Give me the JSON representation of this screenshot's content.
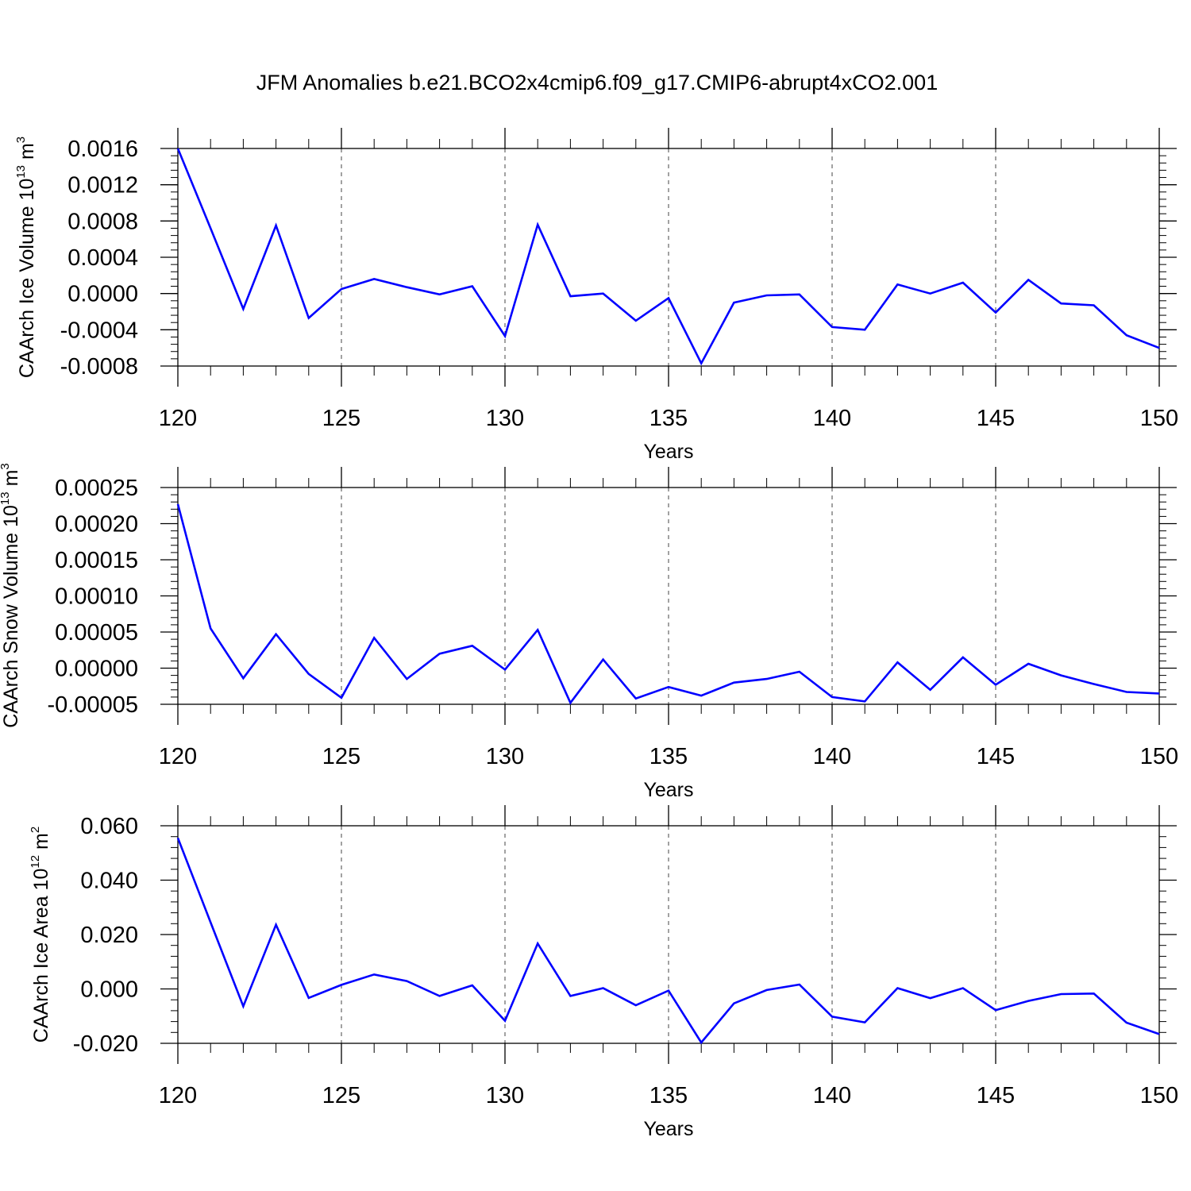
{
  "figure": {
    "title": "JFM Anomalies b.e21.BCO2x4cmip6.f09_g17.CMIP6-abrupt4xCO2.001",
    "line_color": "#0000ff"
  },
  "chart_data": [
    {
      "type": "line",
      "title": "",
      "xlabel": "Years",
      "ylabel": "CAArch Ice Volume 10",
      "ylabel_exponent": "13",
      "ylabel_unit": " m",
      "ylabel_unit_exponent": "3",
      "xlim": [
        120,
        150
      ],
      "ylim": [
        -0.0008,
        0.0016
      ],
      "x_ticks": [
        120,
        125,
        130,
        135,
        140,
        145,
        150
      ],
      "x_tick_labels": [
        "120",
        "125",
        "130",
        "135",
        "140",
        "145",
        "150"
      ],
      "y_ticks": [
        0.0016,
        0.0012,
        0.0008,
        0.0004,
        0.0,
        -0.0004,
        -0.0008
      ],
      "y_tick_labels": [
        "0.0016",
        "0.0012",
        "0.0008",
        "0.0004",
        "0.0000",
        "-0.0004",
        "-0.0008"
      ],
      "x": [
        120,
        121,
        122,
        123,
        124,
        125,
        126,
        127,
        128,
        129,
        130,
        131,
        132,
        133,
        134,
        135,
        136,
        137,
        138,
        139,
        140,
        141,
        142,
        143,
        144,
        145,
        146,
        147,
        148,
        149,
        150
      ],
      "series": [
        {
          "values": [
            0.0016,
            0.00072,
            -0.00017,
            0.00075,
            -0.00027,
            5e-05,
            0.00016,
            7e-05,
            -1e-05,
            8e-05,
            -0.00047,
            0.00076,
            -3e-05,
            0.0,
            -0.0003,
            -5e-05,
            -0.00077,
            -0.0001,
            -2e-05,
            -1e-05,
            -0.00037,
            -0.0004,
            0.0001,
            0.0,
            0.00012,
            -0.00021,
            0.00015,
            -0.00011,
            -0.00013,
            -0.00046,
            -0.0006
          ]
        }
      ],
      "grid": "vertical-dashed"
    },
    {
      "type": "line",
      "title": "",
      "xlabel": "Years",
      "ylabel": "CAArch Snow Volume 10",
      "ylabel_exponent": "13",
      "ylabel_unit": " m",
      "ylabel_unit_exponent": "3",
      "xlim": [
        120,
        150
      ],
      "ylim": [
        -5e-05,
        0.00025
      ],
      "x_ticks": [
        120,
        125,
        130,
        135,
        140,
        145,
        150
      ],
      "x_tick_labels": [
        "120",
        "125",
        "130",
        "135",
        "140",
        "145",
        "150"
      ],
      "y_ticks": [
        0.00025,
        0.0002,
        0.00015,
        0.0001,
        5e-05,
        0.0,
        -5e-05
      ],
      "y_tick_labels": [
        "0.00025",
        "0.00020",
        "0.00015",
        "0.00010",
        "0.00005",
        "0.00000",
        "-0.00005"
      ],
      "x": [
        120,
        121,
        122,
        123,
        124,
        125,
        126,
        127,
        128,
        129,
        130,
        131,
        132,
        133,
        134,
        135,
        136,
        137,
        138,
        139,
        140,
        141,
        142,
        143,
        144,
        145,
        146,
        147,
        148,
        149,
        150
      ],
      "series": [
        {
          "values": [
            0.000227,
            5.5e-05,
            -1.4e-05,
            4.7e-05,
            -8e-06,
            -4.1e-05,
            4.2e-05,
            -1.5e-05,
            2e-05,
            3.1e-05,
            -2e-06,
            5.3e-05,
            -4.8e-05,
            1.2e-05,
            -4.2e-05,
            -2.6e-05,
            -3.8e-05,
            -2e-05,
            -1.5e-05,
            -5e-06,
            -4e-05,
            -4.6e-05,
            8e-06,
            -3e-05,
            1.5e-05,
            -2.3e-05,
            6e-06,
            -1e-05,
            -2.2e-05,
            -3.3e-05,
            -3.5e-05
          ]
        }
      ],
      "grid": "vertical-dashed"
    },
    {
      "type": "line",
      "title": "",
      "xlabel": "Years",
      "ylabel": "CAArch Ice Area 10",
      "ylabel_exponent": "12",
      "ylabel_unit": " m",
      "ylabel_unit_exponent": "2",
      "xlim": [
        120,
        150
      ],
      "ylim": [
        -0.02,
        0.06
      ],
      "x_ticks": [
        120,
        125,
        130,
        135,
        140,
        145,
        150
      ],
      "x_tick_labels": [
        "120",
        "125",
        "130",
        "135",
        "140",
        "145",
        "150"
      ],
      "y_ticks": [
        0.06,
        0.04,
        0.02,
        0.0,
        -0.02
      ],
      "y_tick_labels": [
        "0.060",
        "0.040",
        "0.020",
        "0.000",
        "-0.020"
      ],
      "x": [
        120,
        121,
        122,
        123,
        124,
        125,
        126,
        127,
        128,
        129,
        130,
        131,
        132,
        133,
        134,
        135,
        136,
        137,
        138,
        139,
        140,
        141,
        142,
        143,
        144,
        145,
        146,
        147,
        148,
        149,
        150
      ],
      "series": [
        {
          "values": [
            0.0555,
            0.0245,
            -0.0064,
            0.0236,
            -0.0033,
            0.0015,
            0.0053,
            0.0029,
            -0.0026,
            0.0013,
            -0.0117,
            0.0167,
            -0.0026,
            0.0003,
            -0.006,
            -0.0006,
            -0.0197,
            -0.0053,
            -0.0004,
            0.0016,
            -0.0102,
            -0.0123,
            0.0003,
            -0.0034,
            0.0003,
            -0.0078,
            -0.0044,
            -0.0019,
            -0.0017,
            -0.0124,
            -0.0166
          ]
        }
      ],
      "grid": "vertical-dashed"
    }
  ]
}
